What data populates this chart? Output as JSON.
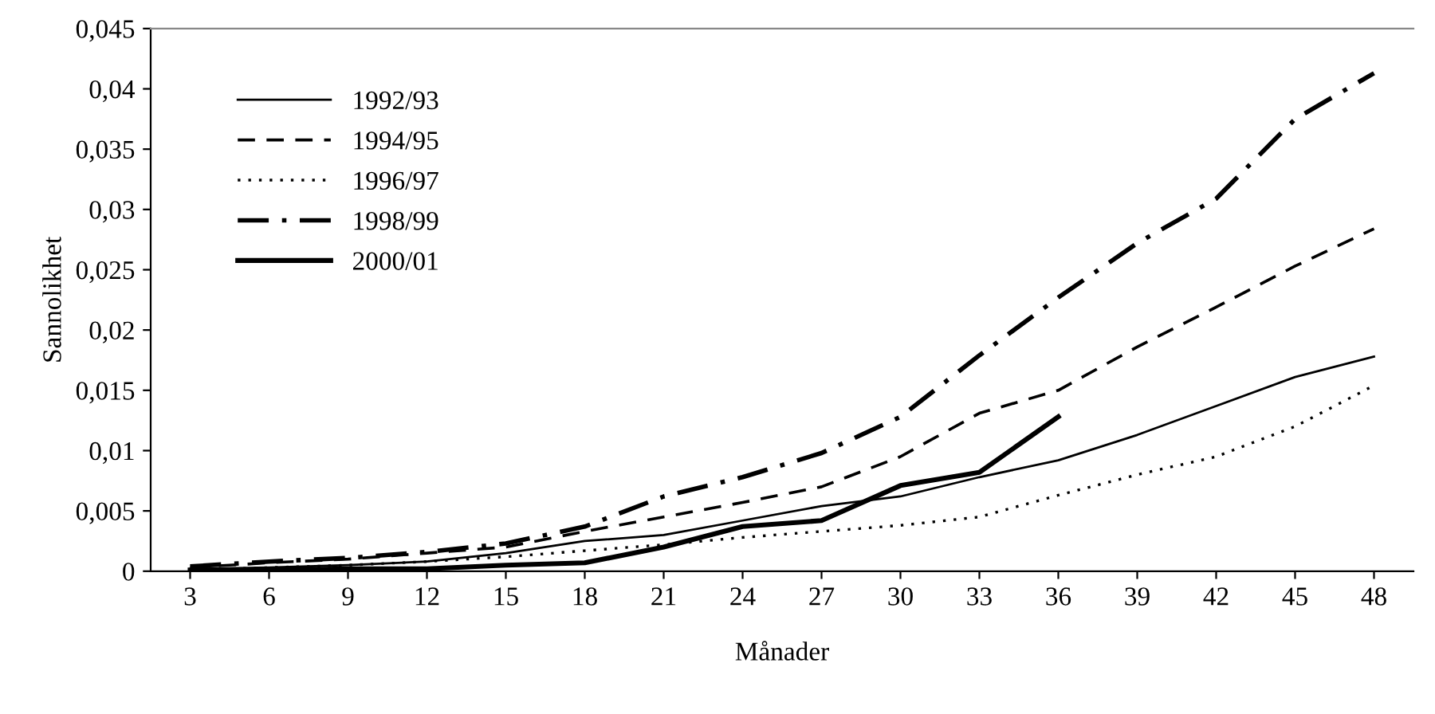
{
  "chart_data": {
    "type": "line",
    "xlabel": "Månader",
    "ylabel": "Sannolikhet",
    "categories": [
      "3",
      "6",
      "9",
      "12",
      "15",
      "18",
      "21",
      "24",
      "27",
      "30",
      "33",
      "36",
      "39",
      "42",
      "45",
      "48"
    ],
    "ylim": [
      0,
      0.045
    ],
    "yticks": [
      0,
      {
        "value": 0.005,
        "label": "0,005"
      },
      {
        "value": 0.01,
        "label": "0,01"
      },
      {
        "value": 0.015,
        "label": "0,015"
      },
      {
        "value": 0.02,
        "label": "0,02"
      },
      {
        "value": 0.025,
        "label": "0,025"
      },
      {
        "value": 0.03,
        "label": "0,03"
      },
      {
        "value": 0.035,
        "label": "0,035"
      },
      {
        "value": 0.04,
        "label": "0,04"
      },
      {
        "value": 0.045,
        "label": "0,045"
      }
    ],
    "legend": "top left",
    "grid": false,
    "marker": "none",
    "series": [
      {
        "name": "1992/93",
        "color": "#000000",
        "line_style": "solid",
        "values": [
          0.0002,
          0.0003,
          0.0005,
          0.0008,
          0.0015,
          0.0025,
          0.003,
          0.0042,
          0.0054,
          0.0062,
          0.0078,
          0.0092,
          0.0113,
          0.0137,
          0.0161,
          0.0178
        ]
      },
      {
        "name": "1994/95",
        "color": "#000000",
        "line_style": "dashed",
        "values": [
          0.0003,
          0.0007,
          0.001,
          0.0015,
          0.002,
          0.0033,
          0.0045,
          0.0057,
          0.007,
          0.0095,
          0.0131,
          0.015,
          0.0186,
          0.0219,
          0.0253,
          0.0284
        ]
      },
      {
        "name": "1996/97",
        "color": "#000000",
        "line_style": "dotted",
        "values": [
          0.0001,
          0.0003,
          0.0005,
          0.0008,
          0.0012,
          0.0017,
          0.0022,
          0.0028,
          0.0033,
          0.0038,
          0.0045,
          0.0063,
          0.008,
          0.0095,
          0.012,
          0.0154
        ]
      },
      {
        "name": "1998/99",
        "color": "#000000",
        "line_style": "dashdot",
        "values": [
          0.0004,
          0.0008,
          0.0011,
          0.0016,
          0.0023,
          0.0037,
          0.0062,
          0.0078,
          0.0098,
          0.0128,
          0.0179,
          0.0227,
          0.0272,
          0.0309,
          0.0375,
          0.0413
        ]
      },
      {
        "name": "2000/01",
        "color": "#000000",
        "line_style": "solid",
        "values": [
          0.0001,
          0.0001,
          0.0002,
          0.0002,
          0.0005,
          0.0007,
          0.002,
          0.0037,
          0.0042,
          0.0071,
          0.0082,
          0.0128,
          null,
          null,
          null,
          null
        ]
      }
    ]
  }
}
